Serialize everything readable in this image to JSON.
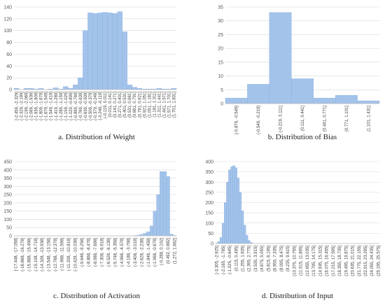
{
  "chart_data": [
    {
      "type": "bar",
      "title": "a. Distribution of Weight",
      "color": "#a3c3ea",
      "edge": "#86aee0",
      "grid": true,
      "categories": [
        "[-2.459, -2.329]",
        "(-2.329, -2.199]",
        "(-2.199, -2.069]",
        "(-2.069, -1.939]",
        "(-1.939, -1.809]",
        "(-1.809, -1.679]",
        "(-1.679, -1.549]",
        "(-1.549, -1.419]",
        "(-1.419, -1.289]",
        "(-1.289, -1.159]",
        "(-1.159, -1.029]",
        "(-1.029, -0.899]",
        "(-0.899, -0.769]",
        "(-0.769, -0.639]",
        "(-0.639, -0.509]",
        "(-0.509, -0.379]",
        "(-0.379, -0.249]",
        "(-0.249, -0.119]",
        "(-0.119, 0.011]",
        "(0.011, 0.141]",
        "(0.141, 0.271]",
        "(0.271, 0.401]",
        "(0.401, 0.531]",
        "(0.531, 0.661]",
        "(0.661, 0.791]",
        "(0.791, 0.921]",
        "(0.921, 1.051]",
        "(1.051, 1.181]",
        "(1.181, 1.311]",
        "(1.311, 1.441]",
        "(1.441, 1.571]",
        "(1.571, 1.701]",
        "(1.701, 1.831]"
      ],
      "values": [
        2,
        0,
        2,
        2,
        1,
        2,
        0,
        1,
        3,
        1,
        5,
        2,
        8,
        20,
        100,
        130,
        129,
        130,
        131,
        130,
        129,
        132,
        98,
        8,
        4,
        2,
        1,
        1,
        1,
        2,
        1,
        1,
        2
      ],
      "ylim": [
        0,
        140
      ],
      "yticks": [
        0,
        20,
        40,
        60,
        80,
        100,
        120,
        140
      ]
    },
    {
      "type": "bar",
      "title": "b. Distribution of Bias",
      "color": "#a3c3ea",
      "edge": "#86aee0",
      "grid": true,
      "categories": [
        "[-0.879, -0.549]",
        "(-0.549, -0.219]",
        "(-0.219, 0.111]",
        "(0.111, 0.441]",
        "(0.441, 0.771]",
        "(0.771, 1.101]",
        "(1.101, 1.431]"
      ],
      "values": [
        2,
        7,
        33,
        9,
        2,
        3,
        1
      ],
      "ylim": [
        0,
        35
      ],
      "yticks": [
        0,
        5,
        10,
        15,
        20,
        25,
        30,
        35
      ]
    },
    {
      "type": "bar",
      "title": "c. Distribution of Activation",
      "color": "#a3c3ea",
      "edge": "#86aee0",
      "grid": true,
      "categories": [
        "[-17.448, -17.058]",
        null,
        "(-16.668, -16.278]",
        null,
        "(-15.888, -15.498]",
        null,
        "(-15.108, -14.718]",
        null,
        "(-14.328, -13.938]",
        null,
        "(-13.548, -13.158]",
        null,
        "(-12.768, -12.378]",
        null,
        "(-11.988, -11.598]",
        null,
        "(-11.208, -10.818]",
        null,
        "(-10.428, -10.038]",
        null,
        "(-9.648, -9.258]",
        null,
        "(-8.868, -8.478]",
        null,
        "(-8.088, -7.698]",
        null,
        "(-7.308, -6.918]",
        null,
        "(-6.528, -6.138]",
        null,
        "(-5.748, -5.358]",
        null,
        "(-4.968, -4.578]",
        null,
        "(-4.188, -3.798]",
        null,
        "(-3.408, -3.018]",
        null,
        "(-2.628, -2.238]",
        null,
        "(-1.848, -1.458]",
        null,
        "(-1.068, -0.678]",
        null,
        "(-0.288, 0.102]",
        null,
        "(0.492, 0.882]",
        null,
        "(1.272, 1.662]"
      ],
      "values": [
        0,
        0,
        0,
        0,
        0,
        0,
        0,
        0,
        0,
        0,
        0,
        0,
        0,
        0,
        0,
        0,
        0,
        0,
        0,
        0,
        0,
        0,
        0,
        0,
        0,
        0,
        0,
        0,
        0,
        0,
        0,
        0,
        0,
        0,
        0,
        0,
        2,
        4,
        8,
        15,
        25,
        60,
        150,
        250,
        390,
        390,
        360,
        10,
        2
      ],
      "ylim": [
        0,
        450
      ],
      "yticks": [
        0,
        50,
        100,
        150,
        200,
        250,
        300,
        350,
        400,
        450
      ]
    },
    {
      "type": "bar",
      "title": "d. Distribution of Input",
      "color": "#a3c3ea",
      "edge": "#86aee0",
      "grid": true,
      "categories": [
        "[-3.305, -2.925]",
        null,
        null,
        "(-2.165, -1.785]",
        null,
        null,
        "(-1.025, -0.645]",
        null,
        null,
        "(0.115, 0.495]",
        null,
        null,
        "(1.255, 1.635]",
        null,
        null,
        "(2.395, 2.775]",
        null,
        null,
        "(3.535, 3.915]",
        null,
        null,
        "(4.675, 5.055]",
        null,
        null,
        "(5.815, 6.195]",
        null,
        null,
        "(6.955, 7.335]",
        null,
        null,
        "(8.095, 8.475]",
        null,
        null,
        "(9.235, 9.615]",
        null,
        null,
        "(10.375, 10.755]",
        null,
        null,
        "(11.515, 11.895]",
        null,
        null,
        "(12.655, 13.035]",
        null,
        null,
        "(13.795, 14.175]",
        null,
        null,
        "(14.935, 15.315]",
        null,
        null,
        "(16.075, 16.455]",
        null,
        null,
        "(17.215, 17.595]",
        null,
        null,
        "(18.355, 18.735]",
        null,
        null,
        "(19.495, 19.875]",
        null,
        null,
        "(20.635, 21.015]",
        null,
        null,
        "(21.775, 22.155]",
        null,
        null,
        "(22.915, 23.295]",
        null,
        null,
        "(24.055, 24.435]",
        null,
        null,
        "(25.195, 25.575]"
      ],
      "values": [
        2,
        10,
        30,
        100,
        200,
        300,
        360,
        375,
        380,
        370,
        320,
        250,
        160,
        90,
        40,
        15,
        5,
        0,
        0,
        0,
        0,
        0,
        0,
        0,
        0,
        0,
        0,
        0,
        0,
        0,
        0,
        0,
        0,
        0,
        0,
        0,
        0,
        0,
        0,
        0,
        0,
        0,
        0,
        0,
        0,
        0,
        0,
        0,
        0,
        0,
        0,
        0,
        0,
        0,
        0,
        0,
        0,
        0,
        0,
        0,
        0,
        0,
        0,
        0,
        0,
        0,
        0,
        0,
        0,
        0,
        0,
        0,
        0,
        0,
        0,
        0
      ],
      "ylim": [
        0,
        400
      ],
      "yticks": [
        0,
        50,
        100,
        150,
        200,
        250,
        300,
        350,
        400
      ]
    }
  ]
}
